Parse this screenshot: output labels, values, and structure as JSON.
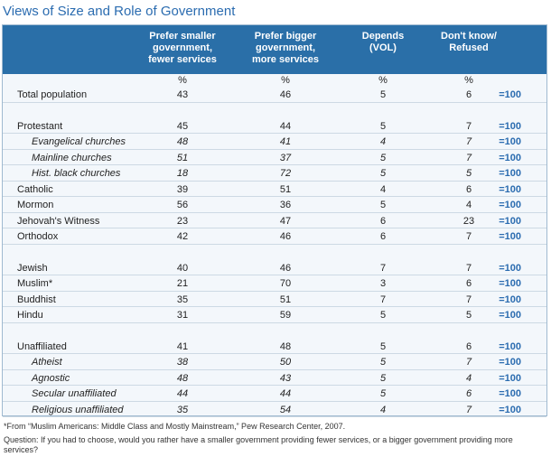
{
  "title": "Views of Size and Role of Government",
  "header": {
    "columns": [
      [
        "Prefer smaller",
        "government,",
        "fewer services"
      ],
      [
        "Prefer bigger",
        "government,",
        "more services"
      ],
      [
        "Depends",
        "(VOL)"
      ],
      [
        "Don't know/",
        "Refused"
      ]
    ],
    "units": [
      "%",
      "%",
      "%",
      "%"
    ]
  },
  "groups": [
    {
      "rows": [
        {
          "label": "Total population",
          "italic": false,
          "values": [
            43,
            46,
            5,
            6
          ],
          "total": "=100"
        }
      ]
    },
    {
      "rows": [
        {
          "label": "Protestant",
          "italic": false,
          "values": [
            45,
            44,
            5,
            7
          ],
          "total": "=100"
        },
        {
          "label": "Evangelical churches",
          "italic": true,
          "values": [
            48,
            41,
            4,
            7
          ],
          "total": "=100"
        },
        {
          "label": "Mainline churches",
          "italic": true,
          "values": [
            51,
            37,
            5,
            7
          ],
          "total": "=100"
        },
        {
          "label": "Hist. black churches",
          "italic": true,
          "values": [
            18,
            72,
            5,
            5
          ],
          "total": "=100"
        },
        {
          "label": "Catholic",
          "italic": false,
          "values": [
            39,
            51,
            4,
            6
          ],
          "total": "=100"
        },
        {
          "label": "Mormon",
          "italic": false,
          "values": [
            56,
            36,
            5,
            4
          ],
          "total": "=100"
        },
        {
          "label": "Jehovah's Witness",
          "italic": false,
          "values": [
            23,
            47,
            6,
            23
          ],
          "total": "=100"
        },
        {
          "label": "Orthodox",
          "italic": false,
          "values": [
            42,
            46,
            6,
            7
          ],
          "total": "=100"
        }
      ]
    },
    {
      "rows": [
        {
          "label": "Jewish",
          "italic": false,
          "values": [
            40,
            46,
            7,
            7
          ],
          "total": "=100"
        },
        {
          "label": "Muslim*",
          "italic": false,
          "values": [
            21,
            70,
            3,
            6
          ],
          "total": "=100"
        },
        {
          "label": "Buddhist",
          "italic": false,
          "values": [
            35,
            51,
            7,
            7
          ],
          "total": "=100"
        },
        {
          "label": "Hindu",
          "italic": false,
          "values": [
            31,
            59,
            5,
            5
          ],
          "total": "=100"
        }
      ]
    },
    {
      "rows": [
        {
          "label": "Unaffiliated",
          "italic": false,
          "values": [
            41,
            48,
            5,
            6
          ],
          "total": "=100"
        },
        {
          "label": "Atheist",
          "italic": true,
          "values": [
            38,
            50,
            5,
            7
          ],
          "total": "=100"
        },
        {
          "label": "Agnostic",
          "italic": true,
          "values": [
            48,
            43,
            5,
            4
          ],
          "total": "=100"
        },
        {
          "label": "Secular unaffiliated",
          "italic": true,
          "values": [
            44,
            44,
            5,
            6
          ],
          "total": "=100"
        },
        {
          "label": "Religious unaffiliated",
          "italic": true,
          "values": [
            35,
            54,
            4,
            7
          ],
          "total": "=100"
        }
      ]
    }
  ],
  "footnotes": [
    "*From “Muslim Americans: Middle Class and Mostly Mainstream,” Pew Research Center, 2007.",
    "Question: If you had to choose, would you rather have a smaller government providing fewer services, or a bigger government providing more services?"
  ]
}
